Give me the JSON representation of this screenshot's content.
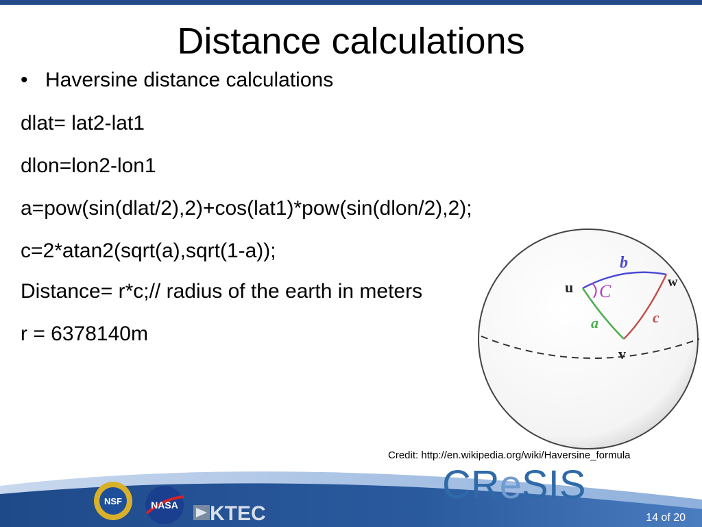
{
  "slide": {
    "title": "Distance calculations",
    "bullet": "Haversine distance calculations",
    "lines": [
      "dlat= lat2-lat1",
      "dlon=lon2-lon1",
      "a=pow(sin(dlat/2),2)+cos(lat1)*pow(sin(dlon/2),2);",
      "c=2*atan2(sqrt(a),sqrt(1-a));",
      "Distance= r*c;// radius of the earth in meters",
      "r = 6378140m"
    ]
  },
  "figure": {
    "vertex_u": "u",
    "vertex_v": "v",
    "vertex_w": "w",
    "side_a": "a",
    "side_b": "b",
    "side_c": "c",
    "angle_C": "C",
    "colors": {
      "a": "#4caf50",
      "b": "#4a4ad6",
      "c": "#c0504d",
      "C": "#b040c0"
    }
  },
  "credit": "Credit: http://en.wikipedia.org/wiki/Haversine_formula",
  "footer": {
    "logo_nsf": "NSF",
    "logo_nasa": "NASA",
    "logo_ktec": "KTEC",
    "logo_cresis": {
      "part1": "CR",
      "part2": "e",
      "part3": "SIS"
    },
    "page": "14 of 20",
    "colors": {
      "band_dark": "#1f4a8a",
      "band_light": "#4a7cc0",
      "cresis": "#2f6aa8"
    }
  }
}
